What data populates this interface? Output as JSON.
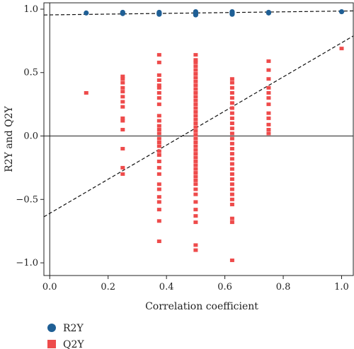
{
  "chart_data": {
    "type": "scatter",
    "title": "",
    "xlabel": "Correlation coefficient",
    "ylabel": "R2Y and Q2Y",
    "xlim": [
      -0.02,
      1.04
    ],
    "ylim": [
      -1.1,
      1.05
    ],
    "xticks": [
      0.0,
      0.2,
      0.4,
      0.6,
      0.8,
      1.0
    ],
    "xtick_labels": [
      "0.0",
      "0.2",
      "0.4",
      "0.6",
      "0.8",
      "1.0"
    ],
    "yticks": [
      -1.0,
      -0.5,
      0.0,
      0.5,
      1.0
    ],
    "ytick_labels": [
      "−1.0",
      "−0.5",
      "0.0",
      "0.5",
      "1.0"
    ],
    "grid": false,
    "legend_position": "bottom-left",
    "series": [
      {
        "name": "R2Y",
        "marker": "circle",
        "color": "#1f5f95",
        "points": [
          [
            0.125,
            0.97
          ],
          [
            0.25,
            0.975
          ],
          [
            0.25,
            0.97
          ],
          [
            0.25,
            0.965
          ],
          [
            0.375,
            0.975
          ],
          [
            0.375,
            0.97
          ],
          [
            0.375,
            0.965
          ],
          [
            0.375,
            0.96
          ],
          [
            0.5,
            0.98
          ],
          [
            0.5,
            0.975
          ],
          [
            0.5,
            0.97
          ],
          [
            0.5,
            0.965
          ],
          [
            0.5,
            0.96
          ],
          [
            0.5,
            0.955
          ],
          [
            0.625,
            0.98
          ],
          [
            0.625,
            0.975
          ],
          [
            0.625,
            0.97
          ],
          [
            0.625,
            0.965
          ],
          [
            0.625,
            0.96
          ],
          [
            0.75,
            0.975
          ],
          [
            0.75,
            0.97
          ],
          [
            1.0,
            0.98
          ]
        ],
        "regression": {
          "intercept": 0.955,
          "slope": 0.03
        }
      },
      {
        "name": "Q2Y",
        "marker": "square",
        "color": "#ee4b4b",
        "points": [
          [
            0.125,
            0.34
          ],
          [
            0.25,
            0.47
          ],
          [
            0.25,
            0.45
          ],
          [
            0.25,
            0.42
          ],
          [
            0.25,
            0.38
          ],
          [
            0.25,
            0.35
          ],
          [
            0.25,
            0.31
          ],
          [
            0.25,
            0.27
          ],
          [
            0.25,
            0.23
          ],
          [
            0.25,
            0.14
          ],
          [
            0.25,
            0.12
          ],
          [
            0.25,
            0.05
          ],
          [
            0.25,
            -0.1
          ],
          [
            0.25,
            -0.25
          ],
          [
            0.25,
            -0.3
          ],
          [
            0.375,
            0.64
          ],
          [
            0.375,
            0.58
          ],
          [
            0.375,
            0.48
          ],
          [
            0.375,
            0.44
          ],
          [
            0.375,
            0.4
          ],
          [
            0.375,
            0.38
          ],
          [
            0.375,
            0.34
          ],
          [
            0.375,
            0.3
          ],
          [
            0.375,
            0.25
          ],
          [
            0.375,
            0.16
          ],
          [
            0.375,
            0.12
          ],
          [
            0.375,
            0.08
          ],
          [
            0.375,
            0.05
          ],
          [
            0.375,
            0.02
          ],
          [
            0.375,
            -0.02
          ],
          [
            0.375,
            -0.05
          ],
          [
            0.375,
            -0.08
          ],
          [
            0.375,
            -0.12
          ],
          [
            0.375,
            -0.15
          ],
          [
            0.375,
            -0.2
          ],
          [
            0.375,
            -0.25
          ],
          [
            0.375,
            -0.3
          ],
          [
            0.375,
            -0.38
          ],
          [
            0.375,
            -0.42
          ],
          [
            0.375,
            -0.48
          ],
          [
            0.375,
            -0.52
          ],
          [
            0.375,
            -0.58
          ],
          [
            0.375,
            -0.67
          ],
          [
            0.375,
            -0.83
          ],
          [
            0.5,
            0.64
          ],
          [
            0.5,
            0.6
          ],
          [
            0.5,
            0.58
          ],
          [
            0.5,
            0.55
          ],
          [
            0.5,
            0.52
          ],
          [
            0.5,
            0.49
          ],
          [
            0.5,
            0.46
          ],
          [
            0.5,
            0.43
          ],
          [
            0.5,
            0.4
          ],
          [
            0.5,
            0.37
          ],
          [
            0.5,
            0.34
          ],
          [
            0.5,
            0.31
          ],
          [
            0.5,
            0.28
          ],
          [
            0.5,
            0.25
          ],
          [
            0.5,
            0.22
          ],
          [
            0.5,
            0.19
          ],
          [
            0.5,
            0.16
          ],
          [
            0.5,
            0.13
          ],
          [
            0.5,
            0.1
          ],
          [
            0.5,
            0.07
          ],
          [
            0.5,
            0.04
          ],
          [
            0.5,
            0.01
          ],
          [
            0.5,
            -0.02
          ],
          [
            0.5,
            -0.05
          ],
          [
            0.5,
            -0.08
          ],
          [
            0.5,
            -0.11
          ],
          [
            0.5,
            -0.14
          ],
          [
            0.5,
            -0.17
          ],
          [
            0.5,
            -0.2
          ],
          [
            0.5,
            -0.23
          ],
          [
            0.5,
            -0.26
          ],
          [
            0.5,
            -0.29
          ],
          [
            0.5,
            -0.32
          ],
          [
            0.5,
            -0.35
          ],
          [
            0.5,
            -0.38
          ],
          [
            0.5,
            -0.42
          ],
          [
            0.5,
            -0.46
          ],
          [
            0.5,
            -0.52
          ],
          [
            0.5,
            -0.58
          ],
          [
            0.5,
            -0.63
          ],
          [
            0.5,
            -0.68
          ],
          [
            0.5,
            -0.86
          ],
          [
            0.5,
            -0.9
          ],
          [
            0.625,
            0.45
          ],
          [
            0.625,
            0.42
          ],
          [
            0.625,
            0.38
          ],
          [
            0.625,
            0.34
          ],
          [
            0.625,
            0.3
          ],
          [
            0.625,
            0.26
          ],
          [
            0.625,
            0.22
          ],
          [
            0.625,
            0.18
          ],
          [
            0.625,
            0.14
          ],
          [
            0.625,
            0.1
          ],
          [
            0.625,
            0.06
          ],
          [
            0.625,
            0.02
          ],
          [
            0.625,
            -0.02
          ],
          [
            0.625,
            -0.06
          ],
          [
            0.625,
            -0.1
          ],
          [
            0.625,
            -0.14
          ],
          [
            0.625,
            -0.18
          ],
          [
            0.625,
            -0.22
          ],
          [
            0.625,
            -0.26
          ],
          [
            0.625,
            -0.3
          ],
          [
            0.625,
            -0.34
          ],
          [
            0.625,
            -0.38
          ],
          [
            0.625,
            -0.42
          ],
          [
            0.625,
            -0.46
          ],
          [
            0.625,
            -0.5
          ],
          [
            0.625,
            -0.54
          ],
          [
            0.625,
            -0.65
          ],
          [
            0.625,
            -0.68
          ],
          [
            0.625,
            -0.98
          ],
          [
            0.75,
            0.59
          ],
          [
            0.75,
            0.52
          ],
          [
            0.75,
            0.45
          ],
          [
            0.75,
            0.38
          ],
          [
            0.75,
            0.34
          ],
          [
            0.75,
            0.3
          ],
          [
            0.75,
            0.25
          ],
          [
            0.75,
            0.18
          ],
          [
            0.75,
            0.14
          ],
          [
            0.75,
            0.09
          ],
          [
            0.75,
            0.05
          ],
          [
            0.75,
            0.02
          ],
          [
            1.0,
            0.69
          ]
        ],
        "regression": {
          "intercept": -0.61,
          "slope": 1.345
        }
      }
    ],
    "reference_lines": {
      "horizontal_y": 0.0,
      "vertical_x": 0.0
    }
  }
}
